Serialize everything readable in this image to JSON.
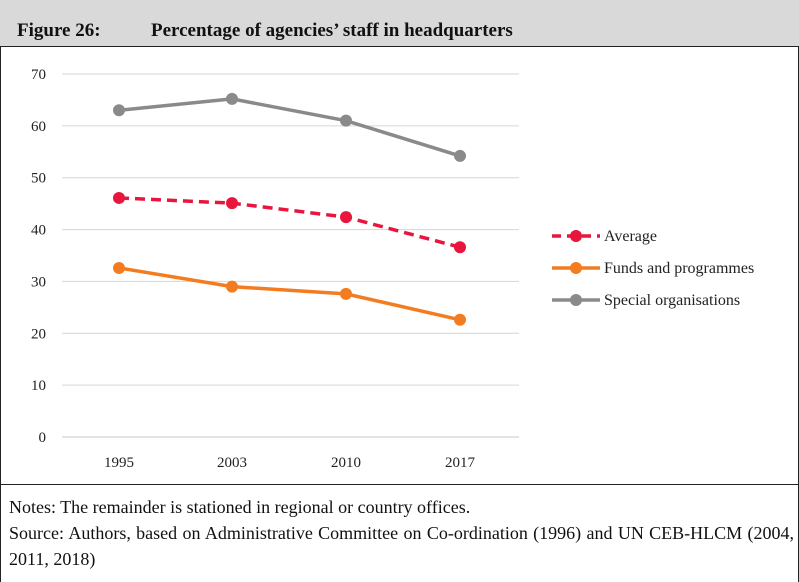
{
  "figure": {
    "number": "Figure 26:",
    "title": "Percentage of agencies’ staff in headquarters"
  },
  "chart_data": {
    "type": "line",
    "title": "",
    "xlabel": "",
    "ylabel": "",
    "categories": [
      "1995",
      "2003",
      "2010",
      "2017"
    ],
    "ylim": [
      0,
      70
    ],
    "yticks": [
      0,
      10,
      20,
      30,
      40,
      50,
      60,
      70
    ],
    "grid": true,
    "legend_position": "right",
    "series": [
      {
        "name": "Average",
        "values": [
          46.1,
          45.1,
          42.4,
          36.6
        ],
        "color": "#e8163c",
        "dashed": true
      },
      {
        "name": "Funds and programmes",
        "values": [
          32.6,
          29.0,
          27.6,
          22.6
        ],
        "color": "#f47c20",
        "dashed": false
      },
      {
        "name": "Special organisations",
        "values": [
          63.0,
          65.2,
          61.0,
          54.2
        ],
        "color": "#8a8a8a",
        "dashed": false
      }
    ]
  },
  "notes": {
    "note": "Notes: The remainder is stationed in regional or country offices.",
    "source": "Source: Authors, based on Administrative Committee on Co-ordination (1996) and UN CEB-HLCM (2004, 2011, 2018)"
  }
}
